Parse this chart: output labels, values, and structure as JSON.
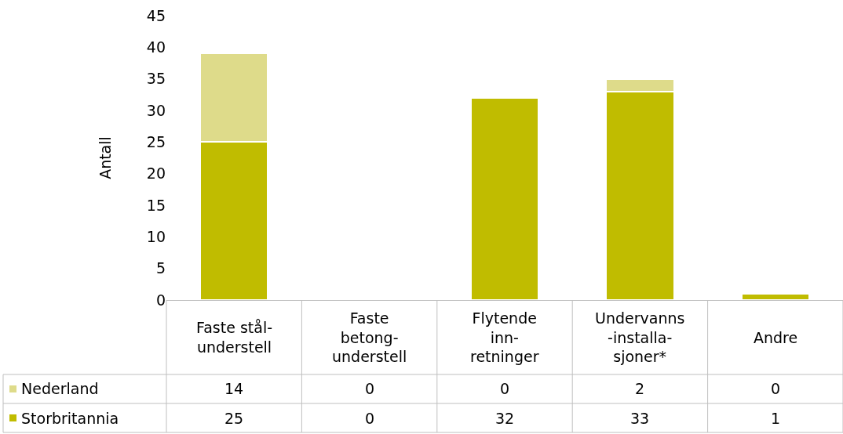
{
  "chart_data": {
    "type": "bar",
    "stacked": true,
    "ylabel": "Antall",
    "categories": [
      "Faste stål-\nunderstell",
      "Faste\nbetong-\nunderstell",
      "Flytende\ninn-\nretninger",
      "Undervanns\n-installa-\nsjoner*",
      "Andre"
    ],
    "series": [
      {
        "name": "Storbritannia",
        "color": "#c0bc00",
        "values": [
          25,
          0,
          32,
          33,
          1
        ]
      },
      {
        "name": "Nederland",
        "color": "#dedb8a",
        "values": [
          14,
          0,
          0,
          2,
          0
        ]
      }
    ],
    "ylim": [
      0,
      45
    ],
    "yticks": [
      0,
      5,
      10,
      15,
      20,
      25,
      30,
      35,
      40,
      45
    ],
    "grid": false,
    "legend": "bottom left",
    "data_labels": true
  }
}
